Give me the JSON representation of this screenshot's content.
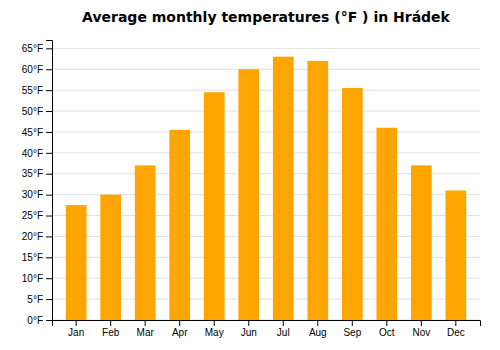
{
  "chart_data": {
    "type": "bar",
    "title": "Average monthly temperatures (°F ) in Hrádek",
    "categories": [
      "Jan",
      "Feb",
      "Mar",
      "Apr",
      "May",
      "Jun",
      "Jul",
      "Aug",
      "Sep",
      "Oct",
      "Nov",
      "Dec"
    ],
    "values": [
      27.5,
      30.0,
      37.0,
      45.5,
      54.5,
      60.0,
      63.0,
      62.0,
      55.5,
      46.0,
      37.0,
      31.0
    ],
    "color": "#FFA500",
    "ylim": [
      0,
      67
    ],
    "yticks": [
      {
        "value": 0,
        "label": "0°F"
      },
      {
        "value": 5,
        "label": "5°F"
      },
      {
        "value": 10,
        "label": "10°F"
      },
      {
        "value": 15,
        "label": "15°F"
      },
      {
        "value": 20,
        "label": "20°F"
      },
      {
        "value": 25,
        "label": "25°F"
      },
      {
        "value": 30,
        "label": "30°F"
      },
      {
        "value": 35,
        "label": "35°F"
      },
      {
        "value": 40,
        "label": "40°F"
      },
      {
        "value": 45,
        "label": "45°F"
      },
      {
        "value": 50,
        "label": "50°F"
      },
      {
        "value": 55,
        "label": "55°F"
      },
      {
        "value": 60,
        "label": "60°F"
      },
      {
        "value": 65,
        "label": "65°F"
      }
    ],
    "grid": true
  }
}
